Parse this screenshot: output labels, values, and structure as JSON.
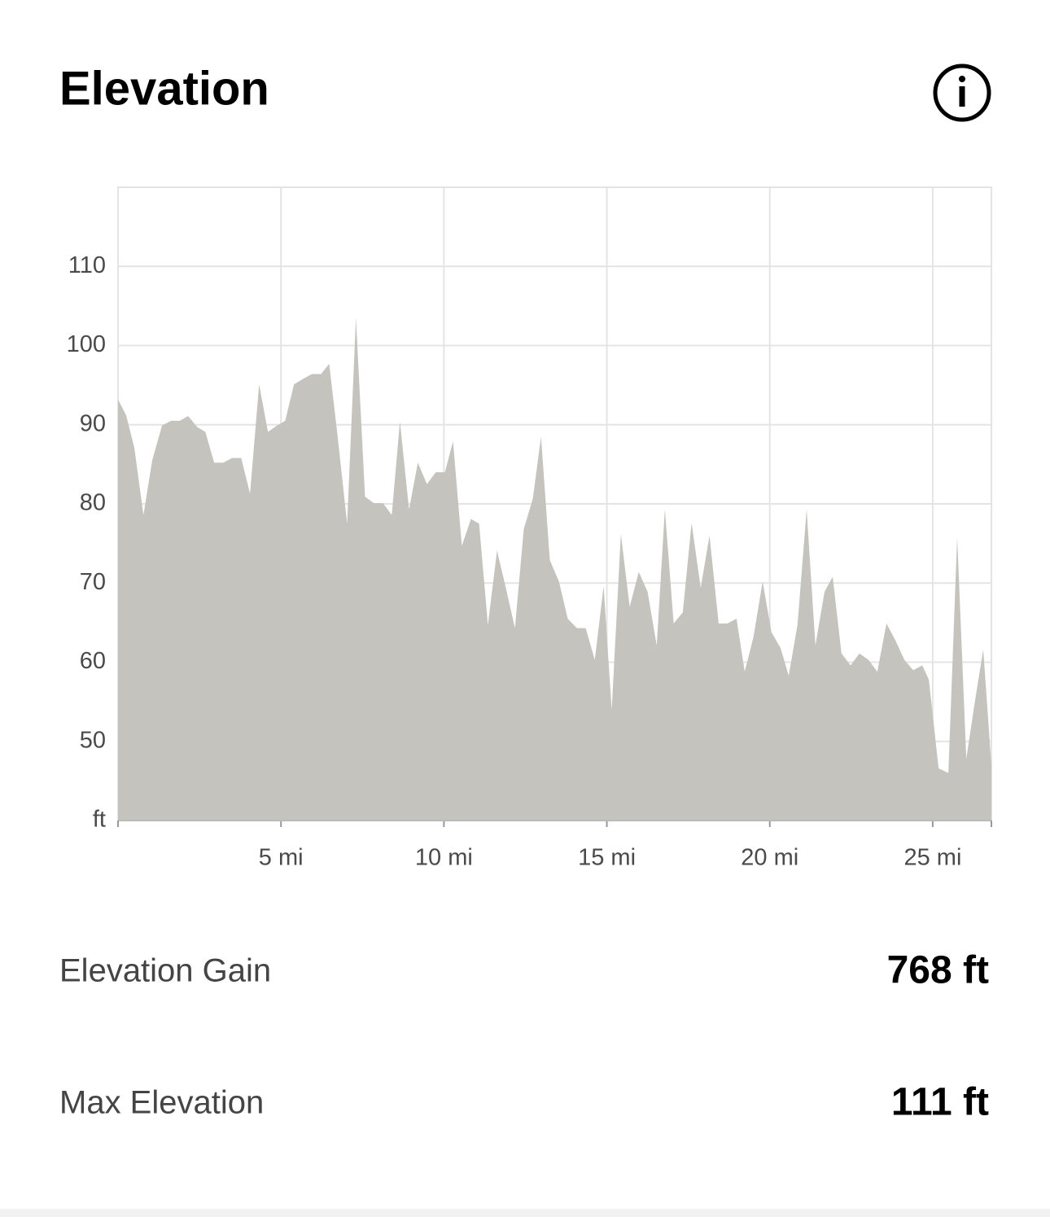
{
  "header": {
    "title": "Elevation"
  },
  "chart_data": {
    "type": "area",
    "color": "#c4c3be",
    "grid": true,
    "xlim": [
      0,
      26.8
    ],
    "ylim": [
      40,
      120
    ],
    "xticks": [
      {
        "value": 5,
        "label": "5 mi"
      },
      {
        "value": 10,
        "label": "10 mi"
      },
      {
        "value": 15,
        "label": "15 mi"
      },
      {
        "value": 20,
        "label": "20 mi"
      },
      {
        "value": 25,
        "label": "25 mi"
      }
    ],
    "yticks": [
      {
        "value": 40,
        "label": "ft"
      },
      50,
      60,
      70,
      80,
      90,
      100,
      110
    ],
    "x": [
      0,
      0.25,
      0.5,
      0.78,
      1.05,
      1.35,
      1.63,
      1.9,
      2.15,
      2.43,
      2.68,
      2.95,
      3.23,
      3.5,
      3.78,
      4.05,
      4.33,
      4.6,
      4.88,
      5.13,
      5.4,
      5.68,
      5.95,
      6.23,
      6.48,
      6.75,
      7.03,
      7.3,
      7.58,
      7.85,
      8.13,
      8.4,
      8.65,
      8.93,
      9.2,
      9.48,
      9.75,
      10.03,
      10.28,
      10.55,
      10.83,
      11.08,
      11.35,
      11.63,
      11.9,
      12.18,
      12.45,
      12.73,
      12.98,
      13.25,
      13.53,
      13.8,
      14.08,
      14.35,
      14.63,
      14.9,
      15.15,
      15.43,
      15.7,
      15.98,
      16.25,
      16.53,
      16.78,
      17.05,
      17.33,
      17.6,
      17.88,
      18.15,
      18.43,
      18.7,
      18.98,
      19.23,
      19.5,
      19.78,
      20.05,
      20.33,
      20.58,
      20.85,
      21.13,
      21.4,
      21.68,
      21.93,
      22.2,
      22.48,
      22.75,
      23.03,
      23.3,
      23.58,
      23.85,
      24.13,
      24.4,
      24.68,
      24.88,
      25.18,
      25.48,
      25.75,
      26.03,
      26.3,
      26.55,
      26.8
    ],
    "values": [
      93.2,
      91.2,
      87.1,
      78.6,
      85.5,
      89.9,
      90.5,
      90.5,
      91.1,
      89.7,
      89.1,
      85.2,
      85.2,
      85.8,
      85.8,
      81.3,
      95.1,
      89.1,
      89.9,
      90.5,
      95.1,
      95.8,
      96.4,
      96.4,
      97.7,
      88.1,
      77.5,
      103.5,
      80.9,
      80.1,
      80.1,
      78.6,
      90.4,
      79.3,
      85.2,
      82.5,
      84.0,
      84.0,
      87.9,
      74.7,
      78.1,
      77.5,
      64.7,
      74.1,
      69.4,
      64.3,
      76.8,
      80.7,
      88.5,
      72.9,
      70.2,
      65.5,
      64.3,
      64.3,
      60.3,
      69.6,
      54.0,
      76.2,
      67.0,
      71.4,
      68.9,
      62.1,
      79.3,
      64.9,
      66.3,
      77.6,
      69.4,
      76.0,
      64.9,
      64.9,
      65.5,
      58.8,
      63.2,
      70.2,
      63.8,
      61.8,
      58.3,
      64.7,
      79.3,
      62.1,
      68.9,
      70.8,
      61.1,
      59.6,
      61.1,
      60.3,
      58.8,
      64.9,
      62.8,
      60.3,
      59.0,
      59.6,
      57.8,
      46.6,
      46.0,
      75.8,
      47.8,
      55.2,
      61.6,
      47.0
    ]
  },
  "stats": [
    {
      "label": "Elevation Gain",
      "value": "768 ft"
    },
    {
      "label": "Max Elevation",
      "value": "111 ft"
    }
  ]
}
